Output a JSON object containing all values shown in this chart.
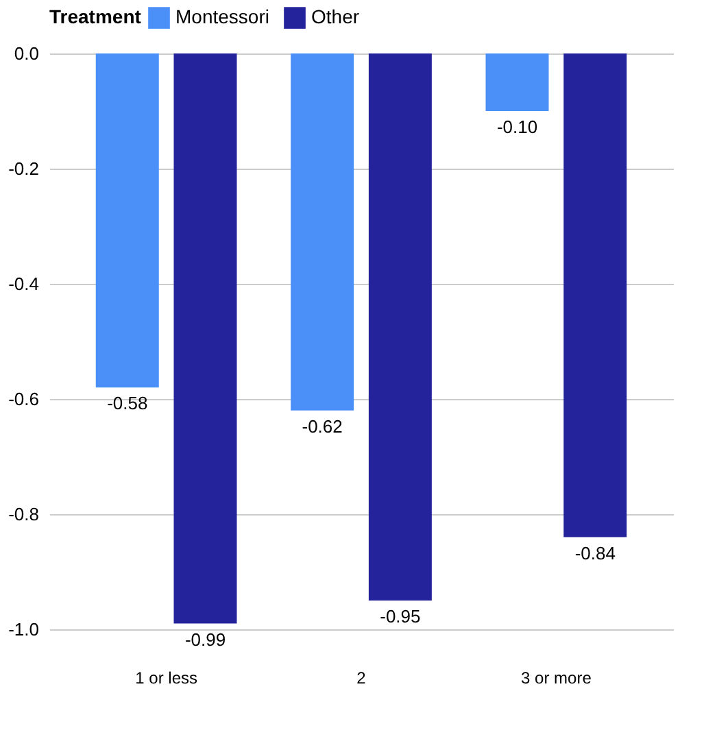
{
  "chart_data": {
    "type": "bar",
    "legend_title": "Treatment",
    "categories": [
      "1 or less",
      "2",
      "3 or more"
    ],
    "series": [
      {
        "name": "Montessori",
        "color": "#4b8ff8",
        "values": [
          -0.58,
          -0.62,
          -0.1
        ],
        "value_labels": [
          "-0.58",
          "-0.62",
          "-0.10"
        ]
      },
      {
        "name": "Other",
        "color": "#25239c",
        "values": [
          -0.99,
          -0.95,
          -0.84
        ],
        "value_labels": [
          "-0.99",
          "-0.95",
          "-0.84"
        ]
      }
    ],
    "ylim": [
      -1.0,
      0.0
    ],
    "yticks": [
      {
        "value": -1.0,
        "label": "-1.0"
      },
      -0.8,
      -0.6,
      -0.4,
      -0.2,
      {
        "value": 0.0,
        "label": "0.0"
      }
    ],
    "grid": "y",
    "legend": "top"
  }
}
